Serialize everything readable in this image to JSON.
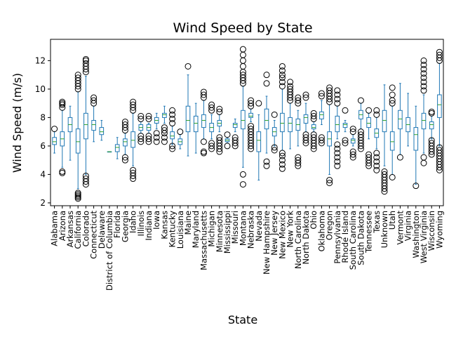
{
  "chart_data": {
    "type": "box",
    "title": "Wind Speed by State",
    "xlabel": "State",
    "ylabel": "Wind Speed (m/s)",
    "ylim": [
      1.8,
      13.5
    ],
    "yticks": [
      2,
      4,
      6,
      8,
      10,
      12
    ],
    "grid": false,
    "categories": [
      "Alabama",
      "Arizona",
      "Arkansas",
      "California",
      "Colorado",
      "Connecticut",
      "Delaware",
      "District of Columbia",
      "Florida",
      "Georgia",
      "Idaho",
      "Illinois",
      "Indiana",
      "Iowa",
      "Kansas",
      "Kentucky",
      "Louisiana",
      "Maine",
      "Maryland",
      "Massachusetts",
      "Michigan",
      "Minnesota",
      "Mississippi",
      "Missouri",
      "Montana",
      "Nebraska",
      "Nevada",
      "New Hampshire",
      "New Jersey",
      "New Mexico",
      "New York",
      "North Carolina",
      "North Dakota",
      "Ohio",
      "Oklahoma",
      "Oregon",
      "Pennsylvania",
      "Rhode Island",
      "South Carolina",
      "South Dakota",
      "Tennessee",
      "Texas",
      "Unknown",
      "Utah",
      "Vermont",
      "Virginia",
      "Washington",
      "West Virginia",
      "Wisconsin",
      "Wyoming"
    ],
    "boxes": [
      {
        "whislo": 5.5,
        "q1": 6.1,
        "med": 6.3,
        "q3": 6.6,
        "whishi": 7.0,
        "fliers": [
          7.2
        ]
      },
      {
        "whislo": 4.5,
        "q1": 6.0,
        "med": 6.5,
        "q3": 7.0,
        "whishi": 8.5,
        "fliers": [
          4.1,
          4.2,
          8.7,
          8.9,
          9.0,
          9.1
        ]
      },
      {
        "whislo": 5.0,
        "q1": 7.0,
        "med": 7.5,
        "q3": 8.0,
        "whishi": 8.8,
        "fliers": []
      },
      {
        "whislo": 3.0,
        "q1": 5.5,
        "med": 6.3,
        "q3": 7.2,
        "whishi": 9.8,
        "fliers": [
          2.3,
          2.4,
          2.5,
          2.6,
          2.7,
          10.0,
          10.2,
          10.4,
          10.6,
          10.8,
          11.0
        ]
      },
      {
        "whislo": 4.0,
        "q1": 6.5,
        "med": 7.5,
        "q3": 8.3,
        "whishi": 10.9,
        "fliers": [
          3.3,
          3.5,
          3.7,
          3.9,
          11.2,
          11.4,
          11.6,
          11.8,
          12.0,
          12.1
        ]
      },
      {
        "whislo": 6.3,
        "q1": 7.1,
        "med": 7.5,
        "q3": 7.8,
        "whishi": 8.8,
        "fliers": [
          9.0,
          9.2,
          9.4
        ]
      },
      {
        "whislo": 6.4,
        "q1": 6.8,
        "med": 7.0,
        "q3": 7.3,
        "whishi": 7.8,
        "fliers": []
      },
      {
        "whislo": 5.6,
        "q1": 5.6,
        "med": 5.6,
        "q3": 5.6,
        "whishi": 5.6,
        "fliers": []
      },
      {
        "whislo": 5.1,
        "q1": 5.6,
        "med": 5.9,
        "q3": 6.1,
        "whishi": 6.6,
        "fliers": []
      },
      {
        "whislo": 5.4,
        "q1": 6.0,
        "med": 6.3,
        "q3": 6.5,
        "whishi": 6.9,
        "fliers": [
          5.0,
          5.2,
          7.1,
          7.3,
          7.5,
          7.7
        ]
      },
      {
        "whislo": 4.6,
        "q1": 5.9,
        "med": 6.4,
        "q3": 7.0,
        "whishi": 8.3,
        "fliers": [
          3.7,
          3.9,
          4.1,
          4.3,
          8.5,
          8.7,
          8.9,
          9.1
        ]
      },
      {
        "whislo": 6.9,
        "q1": 7.1,
        "med": 7.3,
        "q3": 7.5,
        "whishi": 7.7,
        "fliers": [
          6.3,
          6.5,
          6.7,
          7.9,
          8.1
        ]
      },
      {
        "whislo": 6.9,
        "q1": 7.1,
        "med": 7.3,
        "q3": 7.5,
        "whishi": 7.6,
        "fliers": [
          6.3,
          6.5,
          6.7,
          7.9,
          8.1
        ]
      },
      {
        "whislo": 7.2,
        "q1": 7.6,
        "med": 7.8,
        "q3": 8.0,
        "whishi": 8.3,
        "fliers": [
          6.3,
          6.6,
          6.9
        ]
      },
      {
        "whislo": 7.6,
        "q1": 8.0,
        "med": 8.2,
        "q3": 8.3,
        "whishi": 8.8,
        "fliers": [
          6.3,
          6.6,
          6.9,
          7.1,
          7.3
        ]
      },
      {
        "whislo": 6.1,
        "q1": 6.5,
        "med": 6.7,
        "q3": 7.0,
        "whishi": 7.4,
        "fliers": [
          5.8,
          6.0,
          7.6,
          7.9,
          8.2,
          8.5
        ]
      },
      {
        "whislo": 5.8,
        "q1": 6.1,
        "med": 6.3,
        "q3": 6.5,
        "whishi": 6.8,
        "fliers": [
          7.0
        ]
      },
      {
        "whislo": 5.3,
        "q1": 7.0,
        "med": 7.8,
        "q3": 8.8,
        "whishi": 11.0,
        "fliers": [
          11.6
        ]
      },
      {
        "whislo": 5.5,
        "q1": 7.0,
        "med": 7.6,
        "q3": 8.1,
        "whishi": 9.0,
        "fliers": []
      },
      {
        "whislo": 6.5,
        "q1": 7.3,
        "med": 7.8,
        "q3": 8.2,
        "whishi": 9.2,
        "fliers": [
          5.5,
          5.6,
          6.3,
          9.4,
          9.6,
          9.8
        ]
      },
      {
        "whislo": 6.5,
        "q1": 7.0,
        "med": 7.3,
        "q3": 7.6,
        "whishi": 8.2,
        "fliers": [
          5.8,
          6.0,
          6.2,
          8.5,
          8.7,
          8.9
        ]
      },
      {
        "whislo": 7.0,
        "q1": 7.4,
        "med": 7.6,
        "q3": 7.8,
        "whishi": 8.2,
        "fliers": [
          5.6,
          5.8,
          6.0,
          6.2,
          6.4,
          6.6,
          8.4,
          8.6
        ]
      },
      {
        "whislo": 6.2,
        "q1": 6.3,
        "med": 6.4,
        "q3": 6.5,
        "whishi": 6.6,
        "fliers": [
          6.0,
          6.8
        ]
      },
      {
        "whislo": 7.0,
        "q1": 7.3,
        "med": 7.5,
        "q3": 7.6,
        "whishi": 7.9,
        "fliers": [
          6.0,
          6.2,
          6.4,
          6.6
        ]
      },
      {
        "whislo": 4.5,
        "q1": 7.2,
        "med": 7.8,
        "q3": 8.5,
        "whishi": 10.2,
        "fliers": [
          3.3,
          4.0,
          10.4,
          10.6,
          10.8,
          11.0,
          11.2,
          11.6,
          12.0,
          12.4,
          12.8
        ]
      },
      {
        "whislo": 7.7,
        "q1": 8.0,
        "med": 8.1,
        "q3": 8.3,
        "whishi": 8.6,
        "fliers": [
          5.8,
          6.0,
          6.2,
          6.4,
          6.6,
          6.8,
          7.0,
          7.2,
          7.4,
          8.8,
          9.0,
          9.2
        ]
      },
      {
        "whislo": 3.6,
        "q1": 5.6,
        "med": 6.4,
        "q3": 7.0,
        "whishi": 8.2,
        "fliers": [
          9.0
        ]
      },
      {
        "whislo": 5.5,
        "q1": 7.2,
        "med": 7.8,
        "q3": 8.6,
        "whishi": 9.5,
        "fliers": [
          4.6,
          4.9,
          10.4,
          11.0
        ]
      },
      {
        "whislo": 6.0,
        "q1": 6.7,
        "med": 7.0,
        "q3": 7.3,
        "whishi": 7.8,
        "fliers": [
          5.7,
          5.9,
          8.2
        ]
      },
      {
        "whislo": 5.7,
        "q1": 7.0,
        "med": 7.6,
        "q3": 8.3,
        "whishi": 10.0,
        "fliers": [
          4.4,
          4.7,
          5.0,
          5.3,
          5.5,
          10.2,
          10.5,
          10.8,
          11.0,
          11.3,
          11.6
        ]
      },
      {
        "whislo": 5.8,
        "q1": 7.0,
        "med": 7.6,
        "q3": 8.0,
        "whishi": 9.0,
        "fliers": [
          9.2,
          9.4,
          9.6,
          9.8,
          10.0,
          10.2,
          10.5
        ]
      },
      {
        "whislo": 6.0,
        "q1": 7.1,
        "med": 7.5,
        "q3": 7.9,
        "whishi": 8.5,
        "fliers": [
          4.6,
          4.8,
          5.0,
          5.2,
          9.0,
          9.2,
          9.4
        ]
      },
      {
        "whislo": 7.0,
        "q1": 7.6,
        "med": 8.0,
        "q3": 8.2,
        "whishi": 9.0,
        "fliers": [
          6.2,
          6.4,
          6.6,
          6.8,
          9.4,
          9.6
        ]
      },
      {
        "whislo": 7.0,
        "q1": 7.2,
        "med": 7.3,
        "q3": 7.5,
        "whishi": 7.7,
        "fliers": [
          5.8,
          6.0,
          6.2,
          6.4,
          6.6,
          6.8,
          7.9,
          8.1,
          8.3
        ]
      },
      {
        "whislo": 7.5,
        "q1": 7.9,
        "med": 8.2,
        "q3": 8.4,
        "whishi": 9.2,
        "fliers": [
          6.2,
          6.4,
          6.6,
          9.5,
          9.7
        ]
      },
      {
        "whislo": 4.0,
        "q1": 6.0,
        "med": 6.5,
        "q3": 7.0,
        "whishi": 8.9,
        "fliers": [
          3.4,
          3.6,
          9.1,
          9.3,
          9.5,
          9.7,
          9.9,
          10.1
        ]
      },
      {
        "whislo": 6.5,
        "q1": 7.0,
        "med": 7.5,
        "q3": 8.1,
        "whishi": 8.8,
        "fliers": [
          4.6,
          4.9,
          5.2,
          5.5,
          5.8,
          6.1,
          9.0,
          9.3,
          9.6,
          9.9
        ]
      },
      {
        "whislo": 7.0,
        "q1": 7.3,
        "med": 7.5,
        "q3": 7.6,
        "whishi": 7.8,
        "fliers": [
          6.2,
          6.4,
          8.5
        ]
      },
      {
        "whislo": 6.0,
        "q1": 6.2,
        "med": 6.4,
        "q3": 6.5,
        "whishi": 6.8,
        "fliers": [
          5.2,
          5.4,
          5.6,
          7.0,
          7.2
        ]
      },
      {
        "whislo": 7.2,
        "q1": 7.9,
        "med": 8.2,
        "q3": 8.5,
        "whishi": 9.0,
        "fliers": [
          5.8,
          6.0,
          6.2,
          6.4,
          6.6,
          6.8,
          7.0,
          9.2
        ]
      },
      {
        "whislo": 6.5,
        "q1": 7.3,
        "med": 7.6,
        "q3": 8.0,
        "whishi": 8.3,
        "fliers": [
          4.6,
          4.8,
          5.0,
          5.2,
          5.4,
          8.5
        ]
      },
      {
        "whislo": 5.8,
        "q1": 6.6,
        "med": 6.9,
        "q3": 7.2,
        "whishi": 8.0,
        "fliers": [
          4.3,
          4.6,
          4.9,
          5.2,
          5.5,
          8.2,
          8.5
        ]
      },
      {
        "whislo": 4.6,
        "q1": 7.0,
        "med": 7.8,
        "q3": 8.5,
        "whishi": 10.3,
        "fliers": [
          2.8,
          3.0,
          3.2,
          3.4,
          3.6,
          3.8,
          4.0,
          4.2
        ]
      },
      {
        "whislo": 4.0,
        "q1": 5.7,
        "med": 6.3,
        "q3": 7.0,
        "whishi": 8.8,
        "fliers": [
          3.8,
          9.0,
          9.2,
          9.6,
          10.1
        ]
      },
      {
        "whislo": 5.4,
        "q1": 7.2,
        "med": 7.9,
        "q3": 8.5,
        "whishi": 10.4,
        "fliers": [
          5.2
        ]
      },
      {
        "whislo": 6.0,
        "q1": 7.0,
        "med": 7.5,
        "q3": 8.0,
        "whishi": 9.7,
        "fliers": []
      },
      {
        "whislo": 3.3,
        "q1": 5.7,
        "med": 6.8,
        "q3": 7.3,
        "whishi": 8.8,
        "fliers": [
          3.2
        ]
      },
      {
        "whislo": 5.5,
        "q1": 7.2,
        "med": 7.8,
        "q3": 8.3,
        "whishi": 9.6,
        "fliers": [
          4.8,
          5.2,
          9.9,
          10.2,
          10.5,
          10.8,
          11.1,
          11.4,
          11.7,
          12.0
        ]
      },
      {
        "whislo": 6.5,
        "q1": 7.2,
        "med": 7.5,
        "q3": 7.7,
        "whishi": 8.1,
        "fliers": [
          5.4,
          5.6,
          5.8,
          6.0,
          6.2,
          6.4,
          8.3,
          8.4
        ]
      },
      {
        "whislo": 6.0,
        "q1": 8.0,
        "med": 8.9,
        "q3": 9.6,
        "whishi": 11.8,
        "fliers": [
          4.3,
          4.5,
          4.7,
          4.9,
          5.1,
          5.3,
          5.5,
          5.7,
          5.9,
          12.0,
          12.2,
          12.4,
          12.6
        ]
      }
    ]
  }
}
